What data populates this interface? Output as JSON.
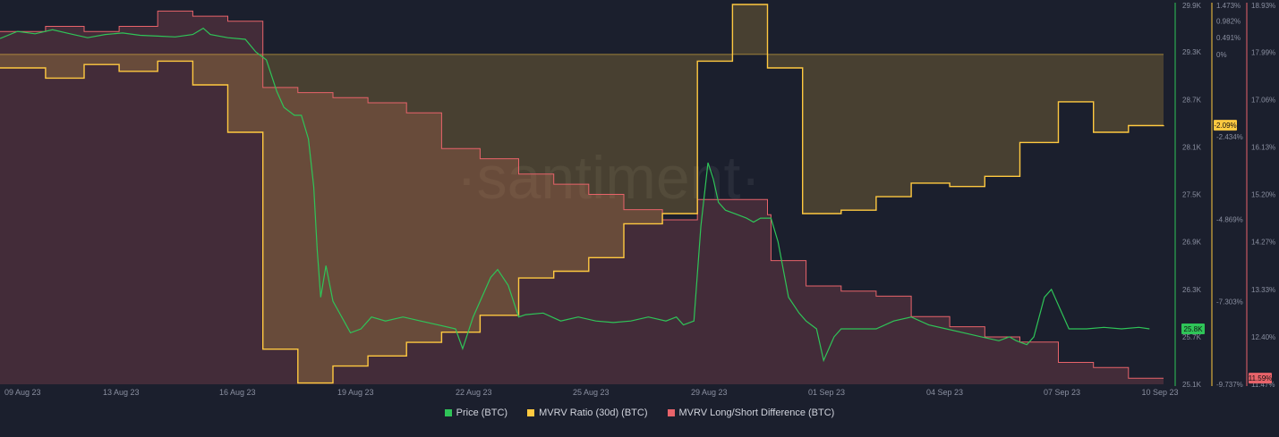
{
  "watermark": "·santiment·",
  "colors": {
    "price": "#2fc458",
    "mvrv": "#ffc940",
    "ls": "#e8636a",
    "background": "#1b1f2d",
    "grid": "#2a2f40",
    "axis_text": "#8a8fa0"
  },
  "legend": [
    {
      "label": "Price (BTC)",
      "color": "#2fc458"
    },
    {
      "label": "MVRV Ratio (30d) (BTC)",
      "color": "#ffc940"
    },
    {
      "label": "MVRV Long/Short Difference (BTC)",
      "color": "#e8636a"
    }
  ],
  "chart_data": {
    "type": "line",
    "x_tick_labels": [
      "09 Aug 23",
      "13 Aug 23",
      "16 Aug 23",
      "19 Aug 23",
      "22 Aug 23",
      "25 Aug 23",
      "29 Aug 23",
      "01 Sep 23",
      "04 Sep 23",
      "07 Sep 23",
      "10 Sep 23"
    ],
    "axes": {
      "price": {
        "ticks": [
          "29.9K",
          "29.3K",
          "28.7K",
          "28.1K",
          "27.5K",
          "26.9K",
          "26.3K",
          "25.7K",
          "25.1K"
        ],
        "min": 25100,
        "max": 29900,
        "current_label": "25.8K",
        "current": 25800
      },
      "mvrv": {
        "ticks": [
          "1.473%",
          "0.982%",
          "0.491%",
          "0%",
          "-2.434%",
          "-4.869%",
          "-7.303%",
          "-9.737%"
        ],
        "min": -9.737,
        "max": 1.473,
        "current_label": "-2.09%",
        "current": -2.09
      },
      "ls": {
        "ticks": [
          "18.93%",
          "17.99%",
          "17.06%",
          "16.13%",
          "15.20%",
          "14.27%",
          "13.33%",
          "12.40%",
          "11.47%"
        ],
        "min": 11.47,
        "max": 18.93,
        "current_label": "11.59%",
        "current": 11.59
      }
    },
    "series": [
      {
        "name": "Price (BTC)",
        "points": [
          [
            0,
            29470
          ],
          [
            0.5,
            29560
          ],
          [
            1,
            29530
          ],
          [
            1.5,
            29580
          ],
          [
            2,
            29530
          ],
          [
            2.5,
            29480
          ],
          [
            3,
            29520
          ],
          [
            3.5,
            29540
          ],
          [
            4,
            29510
          ],
          [
            4.5,
            29500
          ],
          [
            5,
            29490
          ],
          [
            5.5,
            29520
          ],
          [
            5.8,
            29600
          ],
          [
            6,
            29520
          ],
          [
            6.5,
            29480
          ],
          [
            7,
            29460
          ],
          [
            7.3,
            29300
          ],
          [
            7.6,
            29200
          ],
          [
            7.9,
            28800
          ],
          [
            8.1,
            28600
          ],
          [
            8.4,
            28500
          ],
          [
            8.6,
            28500
          ],
          [
            8.8,
            28200
          ],
          [
            8.95,
            27600
          ],
          [
            9.05,
            26800
          ],
          [
            9.15,
            26200
          ],
          [
            9.3,
            26600
          ],
          [
            9.5,
            26150
          ],
          [
            10,
            25750
          ],
          [
            10.3,
            25800
          ],
          [
            10.6,
            25950
          ],
          [
            11,
            25900
          ],
          [
            11.5,
            25950
          ],
          [
            12,
            25900
          ],
          [
            12.5,
            25850
          ],
          [
            13,
            25800
          ],
          [
            13.2,
            25550
          ],
          [
            13.5,
            25950
          ],
          [
            14,
            26450
          ],
          [
            14.2,
            26550
          ],
          [
            14.5,
            26350
          ],
          [
            14.8,
            25950
          ],
          [
            15,
            25980
          ],
          [
            15.5,
            26000
          ],
          [
            16,
            25900
          ],
          [
            16.5,
            25950
          ],
          [
            17,
            25900
          ],
          [
            17.5,
            25880
          ],
          [
            18,
            25900
          ],
          [
            18.5,
            25950
          ],
          [
            19,
            25900
          ],
          [
            19.3,
            25950
          ],
          [
            19.5,
            25850
          ],
          [
            19.8,
            25900
          ],
          [
            20,
            27100
          ],
          [
            20.2,
            27900
          ],
          [
            20.35,
            27700
          ],
          [
            20.5,
            27400
          ],
          [
            20.7,
            27300
          ],
          [
            21,
            27250
          ],
          [
            21.3,
            27200
          ],
          [
            21.5,
            27150
          ],
          [
            21.7,
            27200
          ],
          [
            22,
            27200
          ],
          [
            22.2,
            26900
          ],
          [
            22.5,
            26200
          ],
          [
            22.8,
            26000
          ],
          [
            23,
            25900
          ],
          [
            23.3,
            25800
          ],
          [
            23.5,
            25400
          ],
          [
            23.8,
            25700
          ],
          [
            24,
            25800
          ],
          [
            24.5,
            25800
          ],
          [
            25,
            25800
          ],
          [
            25.5,
            25900
          ],
          [
            26,
            25950
          ],
          [
            26.5,
            25850
          ],
          [
            27,
            25800
          ],
          [
            27.5,
            25750
          ],
          [
            28,
            25700
          ],
          [
            28.5,
            25650
          ],
          [
            28.8,
            25700
          ],
          [
            29,
            25650
          ],
          [
            29.3,
            25600
          ],
          [
            29.5,
            25700
          ],
          [
            29.8,
            26200
          ],
          [
            30,
            26300
          ],
          [
            30.3,
            26000
          ],
          [
            30.5,
            25800
          ],
          [
            31,
            25800
          ],
          [
            31.5,
            25820
          ],
          [
            32,
            25800
          ],
          [
            32.5,
            25820
          ],
          [
            32.8,
            25800
          ]
        ],
        "axis": "price"
      },
      {
        "name": "MVRV Ratio (30d) (BTC)",
        "points": [
          [
            0,
            -0.4
          ],
          [
            1.3,
            -0.4
          ],
          [
            1.3,
            -0.7
          ],
          [
            2.4,
            -0.7
          ],
          [
            2.4,
            -0.3
          ],
          [
            3.4,
            -0.3
          ],
          [
            3.4,
            -0.5
          ],
          [
            4.5,
            -0.5
          ],
          [
            4.5,
            -0.2
          ],
          [
            5.5,
            -0.2
          ],
          [
            5.5,
            -0.9
          ],
          [
            6.5,
            -0.9
          ],
          [
            6.5,
            -2.3
          ],
          [
            7.5,
            -2.3
          ],
          [
            7.5,
            -8.7
          ],
          [
            8.5,
            -8.7
          ],
          [
            8.5,
            -9.7
          ],
          [
            9.5,
            -9.7
          ],
          [
            9.5,
            -9.2
          ],
          [
            10.5,
            -9.2
          ],
          [
            10.5,
            -8.9
          ],
          [
            11.6,
            -8.9
          ],
          [
            11.6,
            -8.5
          ],
          [
            12.6,
            -8.5
          ],
          [
            12.6,
            -8.2
          ],
          [
            13.7,
            -8.2
          ],
          [
            13.7,
            -7.7
          ],
          [
            14.8,
            -7.7
          ],
          [
            14.8,
            -6.6
          ],
          [
            15.8,
            -6.6
          ],
          [
            15.8,
            -6.4
          ],
          [
            16.8,
            -6.4
          ],
          [
            16.8,
            -6.0
          ],
          [
            17.8,
            -6.0
          ],
          [
            17.8,
            -5.0
          ],
          [
            18.9,
            -5.0
          ],
          [
            18.9,
            -4.7
          ],
          [
            19.9,
            -4.7
          ],
          [
            19.9,
            -0.2
          ],
          [
            20.9,
            -0.2
          ],
          [
            20.9,
            1.473
          ],
          [
            21.9,
            1.473
          ],
          [
            21.9,
            -0.4
          ],
          [
            22.9,
            -0.4
          ],
          [
            22.9,
            -4.7
          ],
          [
            24.0,
            -4.7
          ],
          [
            24.0,
            -4.6
          ],
          [
            25.0,
            -4.6
          ],
          [
            25.0,
            -4.2
          ],
          [
            26.0,
            -4.2
          ],
          [
            26.0,
            -3.8
          ],
          [
            27.1,
            -3.8
          ],
          [
            27.1,
            -3.9
          ],
          [
            28.1,
            -3.9
          ],
          [
            28.1,
            -3.6
          ],
          [
            29.1,
            -3.6
          ],
          [
            29.1,
            -2.6
          ],
          [
            30.2,
            -2.6
          ],
          [
            30.2,
            -1.4
          ],
          [
            31.2,
            -1.4
          ],
          [
            31.2,
            -2.3
          ],
          [
            32.2,
            -2.3
          ],
          [
            32.2,
            -2.1
          ],
          [
            33.2,
            -2.1
          ],
          [
            33.2,
            -2.09
          ]
        ],
        "axis": "mvrv"
      },
      {
        "name": "MVRV Long/Short Difference (BTC)",
        "points": [
          [
            0,
            18.4
          ],
          [
            1.3,
            18.4
          ],
          [
            1.3,
            18.5
          ],
          [
            2.4,
            18.5
          ],
          [
            2.4,
            18.4
          ],
          [
            3.4,
            18.4
          ],
          [
            3.4,
            18.5
          ],
          [
            4.5,
            18.5
          ],
          [
            4.5,
            18.8
          ],
          [
            5.5,
            18.8
          ],
          [
            5.5,
            18.7
          ],
          [
            6.5,
            18.7
          ],
          [
            6.5,
            18.6
          ],
          [
            7.5,
            18.6
          ],
          [
            7.5,
            17.3
          ],
          [
            8.5,
            17.3
          ],
          [
            8.5,
            17.2
          ],
          [
            9.5,
            17.2
          ],
          [
            9.5,
            17.1
          ],
          [
            10.5,
            17.1
          ],
          [
            10.5,
            17.0
          ],
          [
            11.6,
            17.0
          ],
          [
            11.6,
            16.8
          ],
          [
            12.6,
            16.8
          ],
          [
            12.6,
            16.1
          ],
          [
            13.7,
            16.1
          ],
          [
            13.7,
            15.9
          ],
          [
            14.8,
            15.9
          ],
          [
            14.8,
            15.6
          ],
          [
            15.8,
            15.6
          ],
          [
            15.8,
            15.4
          ],
          [
            16.8,
            15.4
          ],
          [
            16.8,
            15.2
          ],
          [
            17.8,
            15.2
          ],
          [
            17.8,
            14.9
          ],
          [
            18.9,
            14.9
          ],
          [
            18.9,
            14.7
          ],
          [
            19.9,
            14.7
          ],
          [
            19.9,
            15.1
          ],
          [
            20.9,
            15.1
          ],
          [
            20.9,
            15.1
          ],
          [
            21.9,
            15.1
          ],
          [
            21.9,
            14.8
          ],
          [
            22.0,
            14.8
          ],
          [
            22.0,
            13.9
          ],
          [
            23.0,
            13.9
          ],
          [
            23.0,
            13.4
          ],
          [
            24.0,
            13.4
          ],
          [
            24.0,
            13.3
          ],
          [
            25.0,
            13.3
          ],
          [
            25.0,
            13.2
          ],
          [
            26.0,
            13.2
          ],
          [
            26.0,
            12.8
          ],
          [
            27.1,
            12.8
          ],
          [
            27.1,
            12.6
          ],
          [
            28.1,
            12.6
          ],
          [
            28.1,
            12.4
          ],
          [
            29.1,
            12.4
          ],
          [
            29.1,
            12.3
          ],
          [
            30.2,
            12.3
          ],
          [
            30.2,
            11.9
          ],
          [
            31.2,
            11.9
          ],
          [
            31.2,
            11.8
          ],
          [
            32.2,
            11.8
          ],
          [
            32.2,
            11.59
          ],
          [
            33.2,
            11.59
          ]
        ],
        "axis": "ls"
      }
    ]
  }
}
